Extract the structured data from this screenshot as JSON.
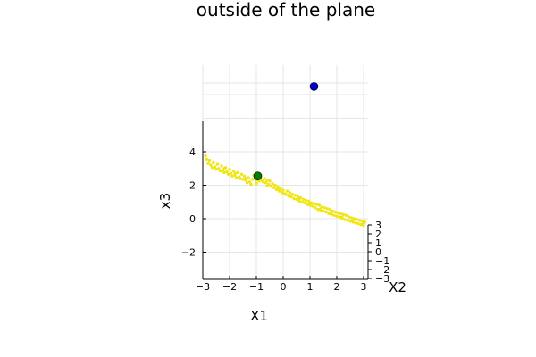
{
  "chart_data": {
    "type": "scatter",
    "projection": "3d",
    "title": "outside of the plane",
    "xlabel": "X1",
    "ylabel": "X2",
    "zlabel": "x3",
    "x_ticks": [
      "−3",
      "−2",
      "−1",
      "0",
      "1",
      "2",
      "3"
    ],
    "y_ticks": [
      "3",
      "2",
      "1",
      "0",
      "−1",
      "−2",
      "−3"
    ],
    "z_ticks": [
      "4",
      "2",
      "0",
      "−2"
    ],
    "xlim": [
      -3,
      3
    ],
    "ylim": [
      -3,
      3
    ],
    "zlim": [
      -3.6,
      7.8
    ],
    "grid": true,
    "legend": "none",
    "series": [
      {
        "role": "plane_samples",
        "color": "#f0e516",
        "x": [
          -2.9,
          -2.85,
          -2.8,
          -2.75,
          -2.7,
          -2.65,
          -2.6,
          -2.55,
          -2.5,
          -2.45,
          -2.4,
          -2.35,
          -2.3,
          -2.25,
          -2.2,
          -2.15,
          -2.1,
          -2.05,
          -2.0,
          -1.95,
          -1.9,
          -1.85,
          -1.8,
          -1.75,
          -1.7,
          -1.65,
          -1.6,
          -1.55,
          -1.5,
          -1.45,
          -1.4,
          -1.35,
          -1.3,
          -1.25,
          -1.2,
          -1.15,
          -1.1,
          -1.05,
          -1.0,
          -0.95,
          -0.9,
          -0.85,
          -0.8,
          -0.75,
          -0.7,
          -0.65,
          -0.6,
          -0.55,
          -0.5,
          -0.45,
          -0.4,
          -0.35,
          -0.3,
          -0.25,
          -0.2,
          -0.15,
          -0.1,
          -0.05,
          0.0,
          0.05,
          0.1,
          0.15,
          0.2,
          0.25,
          0.3,
          0.35,
          0.4,
          0.45,
          0.5,
          0.55,
          0.6,
          0.65,
          0.7,
          0.75,
          0.8,
          0.85,
          0.9,
          0.95,
          1.0,
          1.05,
          1.1,
          1.15,
          1.2,
          1.25,
          1.3,
          1.35,
          1.4,
          1.45,
          1.5,
          1.55,
          1.6,
          1.65,
          1.7,
          1.75,
          1.8,
          1.85,
          1.9,
          1.95,
          2.0,
          2.05,
          2.1,
          2.15,
          2.2,
          2.25,
          2.3,
          2.35,
          2.4,
          2.45,
          2.5,
          2.55,
          2.6,
          2.65,
          2.7,
          2.75,
          2.8,
          2.85,
          2.9,
          2.95,
          3.0,
          3.05,
          -2.6,
          -2.2,
          -1.8,
          -1.4,
          -1.0,
          -0.6,
          -0.2,
          0.2,
          0.6,
          1.0,
          1.4,
          1.8,
          2.2,
          2.6,
          3.0
        ],
        "z": [
          3.75,
          3.55,
          3.3,
          3.5,
          3.2,
          3.05,
          3.35,
          3.1,
          2.95,
          3.25,
          3.0,
          2.85,
          3.15,
          2.9,
          2.75,
          3.05,
          2.8,
          2.65,
          2.95,
          2.7,
          2.55,
          2.85,
          2.6,
          2.45,
          2.75,
          2.5,
          2.4,
          2.65,
          2.35,
          2.55,
          2.3,
          2.15,
          2.45,
          2.2,
          2.05,
          2.35,
          2.6,
          2.4,
          2.3,
          2.45,
          2.25,
          2.5,
          2.3,
          2.2,
          2.4,
          2.15,
          2.3,
          2.05,
          2.25,
          1.95,
          2.1,
          1.85,
          2.0,
          1.75,
          1.9,
          1.65,
          1.8,
          1.55,
          1.7,
          1.5,
          1.45,
          1.65,
          1.35,
          1.55,
          1.3,
          1.45,
          1.2,
          1.4,
          1.15,
          1.3,
          1.05,
          1.25,
          1.0,
          1.15,
          0.95,
          1.1,
          0.85,
          1.05,
          0.8,
          0.95,
          0.75,
          0.9,
          0.65,
          0.85,
          0.55,
          0.8,
          0.5,
          0.7,
          0.45,
          0.65,
          0.4,
          0.6,
          0.3,
          0.55,
          0.25,
          0.45,
          0.2,
          0.4,
          0.15,
          0.35,
          0.1,
          0.3,
          0.0,
          0.25,
          -0.05,
          0.2,
          -0.1,
          0.1,
          -0.15,
          0.05,
          -0.2,
          0.0,
          -0.25,
          -0.05,
          -0.3,
          -0.1,
          -0.35,
          -0.15,
          -0.4,
          -0.2,
          3.4,
          3.0,
          2.7,
          2.4,
          2.1,
          1.95,
          1.75,
          1.4,
          1.2,
          0.9,
          0.6,
          0.35,
          0.1,
          -0.1,
          -0.3
        ]
      },
      {
        "role": "point_on_plane",
        "color": "#008000",
        "x": [
          -0.95
        ],
        "z": [
          2.55
        ]
      },
      {
        "role": "point_outside_plane",
        "color": "#0000cc",
        "x": [
          1.15
        ],
        "z": [
          7.9
        ]
      }
    ]
  }
}
